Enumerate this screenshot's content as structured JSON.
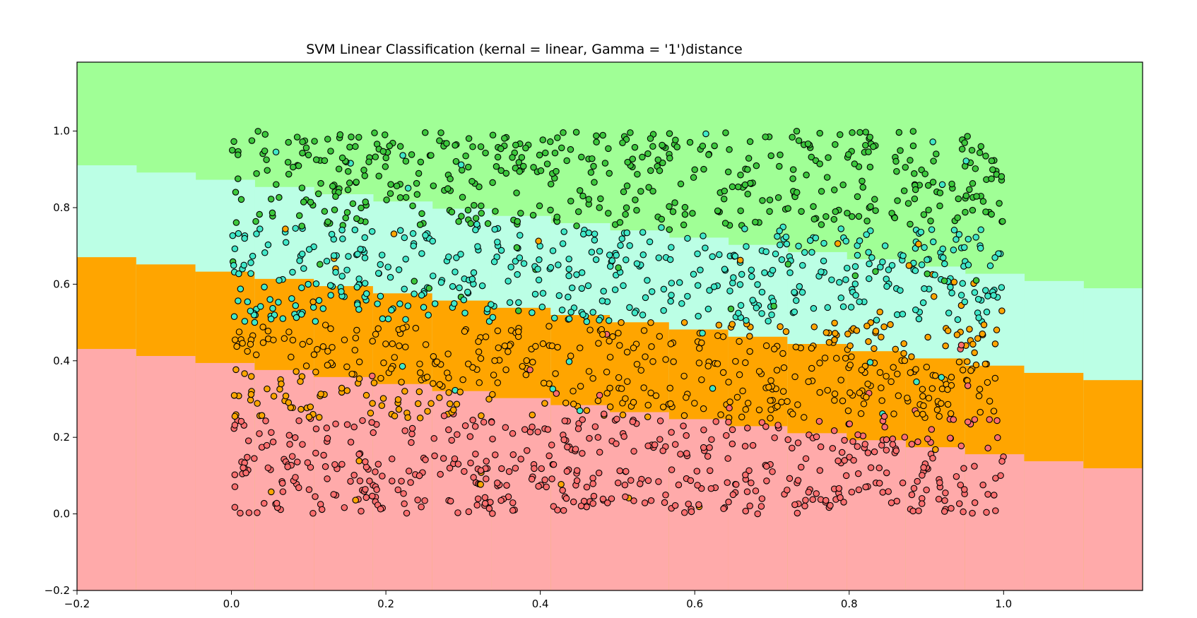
{
  "chart_data": {
    "type": "scatter",
    "title": "SVM Linear Classification (kernal = linear, Gamma = '1')distance",
    "xlabel": "",
    "ylabel": "",
    "xlim": [
      -0.2,
      1.18
    ],
    "ylim": [
      -0.2,
      1.18
    ],
    "xticks": [
      -0.2,
      0,
      0.2,
      0.4,
      0.6,
      0.8,
      1.0
    ],
    "xtick_labels": [
      "−0.2",
      "0.0",
      "0.2",
      "0.4",
      "0.6",
      "0.8",
      "1.0"
    ],
    "yticks": [
      -0.2,
      0,
      0.2,
      0.4,
      0.6,
      0.8,
      1.0
    ],
    "ytick_labels": [
      "−0.2",
      "0.0",
      "0.2",
      "0.4",
      "0.6",
      "0.8",
      "1.0"
    ],
    "grid": false,
    "legend": "none",
    "decision_regions": {
      "colors": [
        "#ffaaaa",
        "#ffa500",
        "#bbffe5",
        "#a0ff96"
      ],
      "boundaries": [
        {
          "between": "class0-class1",
          "x": [
            -0.2,
            1.18
          ],
          "y": [
            0.44,
            0.11
          ]
        },
        {
          "between": "class1-class2",
          "x": [
            -0.2,
            1.18
          ],
          "y": [
            0.68,
            0.34
          ]
        },
        {
          "between": "class2-class3",
          "x": [
            -0.2,
            1.18
          ],
          "y": [
            0.92,
            0.58
          ]
        }
      ]
    },
    "point_colors": [
      "#ff6f6f",
      "#ffa500",
      "#40e8c8",
      "#3cc83c"
    ],
    "point_summary": {
      "count": 2000,
      "x_range": [
        0,
        1
      ],
      "y_range": [
        0,
        1
      ],
      "class_rule": "floor(y * 4) with label noise",
      "noise_fraction": 0.05
    }
  }
}
